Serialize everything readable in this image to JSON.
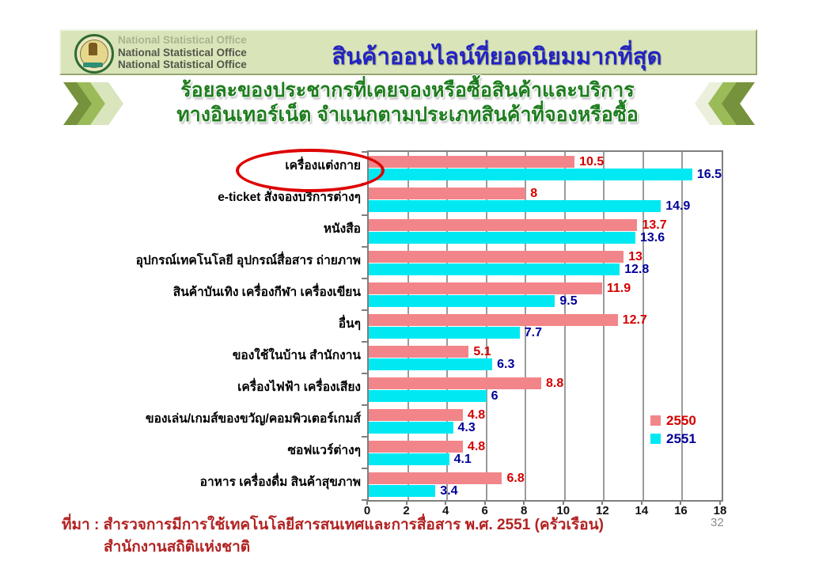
{
  "header": {
    "org_lines": [
      "National Statistical Office",
      "National Statistical Office",
      "National Statistical Office"
    ],
    "title": "สินค้าออนไลน์ที่ยอดนิยมมากที่สุด"
  },
  "subtitle": {
    "line1": "ร้อยละของประชากรที่เคยจองหรือซื้อสินค้าและบริการ",
    "line2": "ทางอินเทอร์เน็ต จำแนกตามประเภทสินค้าที่จองหรือซื้อ"
  },
  "chart_data": {
    "type": "bar",
    "orientation": "horizontal",
    "title": "ร้อยละของประชากรที่เคยจองหรือซื้อสินค้าและบริการทางอินเทอร์เน็ต จำแนกตามประเภทสินค้าที่จองหรือซื้อ",
    "categories": [
      "เครื่องแต่งกาย",
      "e-ticket สั่งจองบริการต่างๆ",
      "หนังสือ",
      "อุปกรณ์เทคโนโลยี อุปกรณ์สื่อสาร ถ่ายภาพ",
      "สินค้าบันเทิง เครื่องกีฬา เครื่องเขียน",
      "อื่นๆ",
      "ของใช้ในบ้าน สำนักงาน",
      "เครื่องไฟฟ้า เครื่องเสียง",
      "ของเล่น/เกมส์ของขวัญ/คอมพิวเตอร์เกมส์",
      "ซอฟแวร์ต่างๆ",
      "อาหาร เครื่องดื่ม สินค้าสุขภาพ"
    ],
    "series": [
      {
        "name": "2550",
        "color": "#F28589",
        "label_color": "#D40000",
        "values": [
          10.5,
          8,
          13.7,
          13,
          11.9,
          12.7,
          5.1,
          8.8,
          4.8,
          4.8,
          6.8
        ]
      },
      {
        "name": "2551",
        "color": "#00E9F2",
        "label_color": "#000099",
        "values": [
          16.5,
          14.9,
          13.6,
          12.8,
          9.5,
          7.7,
          6.3,
          6,
          4.3,
          4.1,
          3.4
        ]
      }
    ],
    "x_ticks": [
      0,
      2,
      4,
      6,
      8,
      10,
      12,
      14,
      16,
      18
    ],
    "xlim": [
      0,
      18
    ],
    "grid": true,
    "legend_position": "inside-right",
    "annotation": "red ellipse highlighting first category เครื่องแต่งกาย"
  },
  "footer": {
    "source_line1": "ที่มา : สำรวจการมีการใช้เทคโนโลยีสารสนเทศและการสื่อสาร พ.ศ. 2551 (ครัวเรือน)",
    "source_line2": "สำนักงานสถิติแห่งชาติ",
    "page_number": "32"
  },
  "colors": {
    "header_band": "#D9E5B9",
    "title_text": "#2323C3",
    "subtitle_text": "#1E7D1E",
    "footer_text": "#B22222",
    "gridline": "#9B9B9B",
    "chevron_dark": "#76923C",
    "chevron_mid": "#9BBB59",
    "chevron_light": "#D9E5BC",
    "chevron_lightest": "#EAF0DC"
  }
}
